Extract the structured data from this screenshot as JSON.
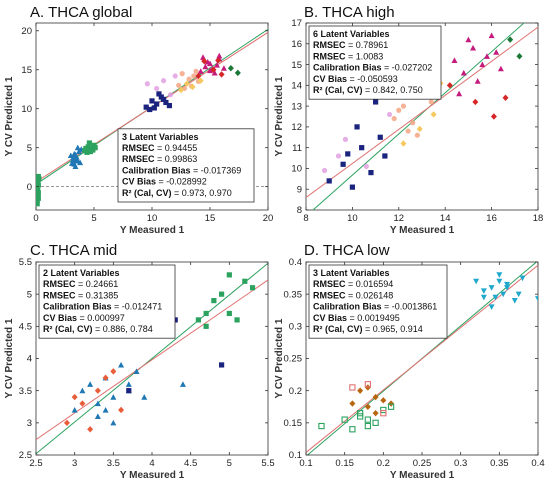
{
  "chart_data": [
    {
      "type": "scatter",
      "title": "A. THCA global",
      "xlabel": "Y Measured 1",
      "ylabel": "Y CV Predicted 1",
      "xlim": [
        0,
        20
      ],
      "ylim": [
        -3,
        21
      ],
      "xticks": [
        0,
        5,
        10,
        15,
        20
      ],
      "yticks": [
        0,
        5,
        10,
        15,
        20
      ],
      "zero_line": true,
      "fit_lines": [
        {
          "color": "#2ca25f",
          "x": [
            0,
            20
          ],
          "y": [
            0.3,
            20.2
          ]
        },
        {
          "color": "#e07070",
          "x": [
            0,
            20
          ],
          "y": [
            0.6,
            19.8
          ]
        }
      ],
      "stats_box": {
        "position": "bottom-right",
        "lines": [
          {
            "label": "3 Latent Variables",
            "value": ""
          },
          {
            "label": "RMSEC",
            "value": " = 0.94455"
          },
          {
            "label": "RMSEC",
            "value": " = 0.99863"
          },
          {
            "label": "Calibration Bias",
            "value": " = -0.017369"
          },
          {
            "label": "CV Bias",
            "value": " = -0.028992"
          },
          {
            "label": "R² (Cal, CV)",
            "value": " = 0.973, 0.970"
          }
        ]
      },
      "series": [
        {
          "color": "#1f77b4",
          "marker": "triangle",
          "x": [
            3.1,
            3.3,
            3.5,
            3.7,
            3.4,
            3.2,
            3.6,
            3.8,
            3.0,
            3.5,
            3.3,
            3.9,
            3.4,
            3.2,
            3.6
          ],
          "y": [
            3.0,
            4.2,
            3.8,
            4.5,
            2.6,
            3.4,
            5.0,
            3.1,
            4.0,
            3.5,
            2.9,
            4.8,
            4.1,
            3.7,
            3.3
          ]
        },
        {
          "color": "#2ca25f",
          "marker": "square",
          "x": [
            4.2,
            4.5,
            4.8,
            4.4,
            5.0,
            4.6,
            4.9,
            4.3,
            5.1,
            4.7
          ],
          "y": [
            4.6,
            5.1,
            4.9,
            4.4,
            5.3,
            5.6,
            4.7,
            4.9,
            5.0,
            4.5
          ]
        },
        {
          "color": "#2ca25f",
          "marker": "square",
          "x": [
            0.1,
            0.15,
            0.2,
            0.1,
            0.2,
            0.15,
            0.25,
            0.1,
            0.2,
            0.15,
            0.1,
            0.2
          ],
          "y": [
            -1.8,
            -1.2,
            -0.8,
            -0.3,
            0.2,
            0.6,
            1.0,
            -2.2,
            -1.5,
            -0.5,
            0.4,
            1.3
          ]
        },
        {
          "color": "#1a237e",
          "marker": "square",
          "x": [
            9.5,
            10.0,
            10.4,
            10.8,
            11.2,
            9.8,
            10.6,
            11.0,
            11.5,
            10.2
          ],
          "y": [
            10.2,
            11.0,
            10.6,
            11.5,
            10.8,
            9.9,
            11.9,
            11.2,
            10.4,
            10.1
          ]
        },
        {
          "color": "#f4a582",
          "marker": "circle",
          "x": [
            12.3,
            12.8,
            13.2,
            13.6,
            14.0,
            12.6,
            13.4,
            13.8
          ],
          "y": [
            13.0,
            12.6,
            13.8,
            14.2,
            13.5,
            14.5,
            12.9,
            14.8
          ]
        },
        {
          "color": "#f6c85f",
          "marker": "diamond",
          "x": [
            12.5,
            13.0,
            13.5,
            14.2
          ],
          "y": [
            12.4,
            13.2,
            12.8,
            13.6
          ]
        },
        {
          "color": "#e0a0e0",
          "marker": "circle",
          "x": [
            9.6,
            10.4,
            11.0,
            12.0,
            11.6
          ],
          "y": [
            13.2,
            12.6,
            13.6,
            14.2,
            11.8
          ]
        },
        {
          "color": "#c51b7d",
          "marker": "triangle",
          "x": [
            14.2,
            14.6,
            15.0,
            15.4,
            15.8,
            14.8,
            15.2,
            15.6,
            16.2,
            14.4,
            15.0,
            15.8
          ],
          "y": [
            14.8,
            15.4,
            15.8,
            14.6,
            16.4,
            16.0,
            15.1,
            15.6,
            15.2,
            16.6,
            14.9,
            16.8
          ]
        },
        {
          "color": "#d62728",
          "marker": "diamond",
          "x": [
            14.0,
            14.5,
            15.3,
            16.0,
            15.7
          ],
          "y": [
            14.2,
            16.1,
            15.0,
            14.4,
            16.2
          ]
        },
        {
          "color": "#1b7837",
          "marker": "diamond",
          "x": [
            16.8,
            17.4
          ],
          "y": [
            15.2,
            14.6
          ]
        }
      ]
    },
    {
      "type": "scatter",
      "title": "B. THCA high",
      "xlabel": "Y Measured 1",
      "ylabel": "Y CV Predicted 1",
      "xlim": [
        8,
        18
      ],
      "ylim": [
        8,
        17
      ],
      "xticks": [
        8,
        10,
        12,
        14,
        16,
        18
      ],
      "yticks": [
        8,
        9,
        10,
        11,
        12,
        13,
        14,
        15,
        16,
        17
      ],
      "fit_lines": [
        {
          "color": "#2ca25f",
          "x": [
            8,
            18
          ],
          "y": [
            7.7,
            17.6
          ]
        },
        {
          "color": "#e07070",
          "x": [
            8,
            18
          ],
          "y": [
            8.6,
            16.8
          ]
        }
      ],
      "stats_box": {
        "position": "top-left",
        "lines": [
          {
            "label": "6 Latent Variables",
            "value": ""
          },
          {
            "label": "RMSEC",
            "value": " = 0.78961"
          },
          {
            "label": "RMSEC",
            "value": " = 1.0083"
          },
          {
            "label": "Calibration Bias",
            "value": " = -0.027202"
          },
          {
            "label": "CV Bias",
            "value": " = -0.050593"
          },
          {
            "label": "R² (Cal, CV)",
            "value": " = 0.842, 0.750"
          }
        ]
      },
      "series": [
        {
          "color": "#1a237e",
          "marker": "square",
          "x": [
            9.0,
            9.6,
            10.0,
            10.4,
            10.8,
            11.0,
            11.4,
            10.2,
            9.8,
            11.2
          ],
          "y": [
            9.4,
            10.2,
            9.1,
            11.0,
            9.8,
            13.2,
            10.6,
            12.0,
            10.7,
            11.5
          ]
        },
        {
          "color": "#f4a582",
          "marker": "circle",
          "x": [
            11.8,
            12.2,
            12.6,
            13.0,
            12.4,
            13.4,
            12.0,
            12.8
          ],
          "y": [
            12.4,
            13.0,
            12.2,
            13.6,
            11.8,
            13.2,
            12.8,
            11.6
          ]
        },
        {
          "color": "#f6c85f",
          "marker": "diamond",
          "x": [
            12.2,
            12.9,
            13.5,
            13.8
          ],
          "y": [
            11.2,
            11.9,
            12.6,
            14.1
          ]
        },
        {
          "color": "#e0a0e0",
          "marker": "circle",
          "x": [
            8.8,
            9.4,
            9.7,
            10.6,
            11.6
          ],
          "y": [
            9.9,
            10.6,
            11.4,
            10.1,
            12.6
          ]
        },
        {
          "color": "#c51b7d",
          "marker": "triangle",
          "x": [
            14.4,
            14.8,
            15.2,
            15.6,
            16.0,
            15.4,
            15.8,
            16.4,
            14.6,
            15.0,
            16.2
          ],
          "y": [
            15.2,
            14.6,
            15.8,
            15.0,
            16.4,
            14.2,
            15.4,
            14.8,
            13.6,
            16.2,
            15.6
          ]
        },
        {
          "color": "#d62728",
          "marker": "diamond",
          "x": [
            14.2,
            15.3,
            16.6,
            16.1
          ],
          "y": [
            14.0,
            13.2,
            13.4,
            12.5
          ]
        },
        {
          "color": "#1b7837",
          "marker": "diamond",
          "x": [
            16.8,
            17.2
          ],
          "y": [
            16.2,
            15.4
          ]
        }
      ]
    },
    {
      "type": "scatter",
      "title": "C. THCA mid",
      "xlabel": "Y Measured 1",
      "ylabel": "Y CV Predicted 1",
      "xlim": [
        2.5,
        5.5
      ],
      "ylim": [
        2.5,
        5.5
      ],
      "xticks": [
        2.5,
        3,
        3.5,
        4,
        4.5,
        5,
        5.5
      ],
      "yticks": [
        2.5,
        3,
        3.5,
        4,
        4.5,
        5,
        5.5
      ],
      "fit_lines": [
        {
          "color": "#2ca25f",
          "x": [
            2.5,
            5.5
          ],
          "y": [
            2.52,
            5.48
          ]
        },
        {
          "color": "#e07070",
          "x": [
            2.5,
            5.5
          ],
          "y": [
            2.74,
            5.22
          ]
        }
      ],
      "stats_box": {
        "position": "top-left",
        "lines": [
          {
            "label": "2 Latent Variables",
            "value": ""
          },
          {
            "label": "RMSEC",
            "value": " = 0.24661"
          },
          {
            "label": "RMSEC",
            "value": " = 0.31385"
          },
          {
            "label": "Calibration Bias",
            "value": " = -0.012471"
          },
          {
            "label": "CV Bias",
            "value": " = 0.000997"
          },
          {
            "label": "R² (Cal, CV)",
            "value": " = 0.886, 0.784"
          }
        ]
      },
      "series": [
        {
          "color": "#1f77b4",
          "marker": "triangle",
          "x": [
            3.0,
            3.2,
            3.3,
            3.4,
            3.5,
            3.6,
            3.7,
            3.8,
            3.3,
            3.5,
            3.7,
            3.9,
            3.1,
            3.4
          ],
          "y": [
            3.2,
            3.6,
            3.1,
            3.7,
            3.4,
            3.9,
            3.5,
            3.8,
            3.3,
            3.0,
            3.6,
            3.4,
            3.5,
            3.2
          ]
        },
        {
          "color": "#e85d3a",
          "marker": "diamond",
          "x": [
            2.9,
            3.1,
            3.3,
            3.5,
            3.6,
            3.2,
            3.4,
            3.0
          ],
          "y": [
            3.0,
            3.3,
            3.5,
            3.8,
            3.2,
            2.9,
            3.7,
            3.4
          ]
        },
        {
          "color": "#1a237e",
          "marker": "square",
          "x": [
            4.3,
            4.9,
            3.7
          ],
          "y": [
            4.6,
            3.9,
            3.5
          ]
        },
        {
          "color": "#2ca25f",
          "marker": "square",
          "x": [
            4.6,
            4.7,
            4.8,
            4.9,
            5.0,
            5.1,
            5.2,
            5.3,
            4.7,
            5.0
          ],
          "y": [
            4.6,
            4.5,
            4.9,
            5.0,
            4.7,
            4.6,
            5.2,
            5.1,
            4.7,
            5.3
          ]
        },
        {
          "color": "#1f77b4",
          "marker": "triangle",
          "x": [
            4.4
          ],
          "y": [
            3.6
          ]
        }
      ]
    },
    {
      "type": "scatter",
      "title": "D. THCA low",
      "xlabel": "Y Measured 1",
      "ylabel": "Y CV Predicted 1",
      "xlim": [
        0.1,
        0.4
      ],
      "ylim": [
        0.1,
        0.4
      ],
      "xticks": [
        0.1,
        0.15,
        0.2,
        0.25,
        0.3,
        0.35,
        0.4
      ],
      "yticks": [
        0.1,
        0.15,
        0.2,
        0.25,
        0.3,
        0.35,
        0.4
      ],
      "fit_lines": [
        {
          "color": "#2ca25f",
          "x": [
            0.1,
            0.4
          ],
          "y": [
            0.098,
            0.402
          ]
        },
        {
          "color": "#e07070",
          "x": [
            0.1,
            0.4
          ],
          "y": [
            0.104,
            0.395
          ]
        }
      ],
      "stats_box": {
        "position": "top-left",
        "lines": [
          {
            "label": "3 Latent Variables",
            "value": ""
          },
          {
            "label": "RMSEC",
            "value": " = 0.016594"
          },
          {
            "label": "RMSEC",
            "value": " = 0.026148"
          },
          {
            "label": "Calibration Bias",
            "value": " = -0.0013861"
          },
          {
            "label": "CV Bias",
            "value": " = 0.0019495"
          },
          {
            "label": "R² (Cal, CV)",
            "value": " = 0.965, 0.914"
          }
        ]
      },
      "series": [
        {
          "color": "#1fa8cc",
          "marker": "triangle-down",
          "x": [
            0.32,
            0.33,
            0.34,
            0.345,
            0.35,
            0.355,
            0.36,
            0.37,
            0.38,
            0.34,
            0.33,
            0.36,
            0.35,
            0.375
          ],
          "y": [
            0.37,
            0.355,
            0.36,
            0.345,
            0.37,
            0.35,
            0.365,
            0.34,
            0.375,
            0.33,
            0.345,
            0.36,
            0.38,
            0.35
          ]
        },
        {
          "color": "#1fa8cc",
          "marker": "triangle-down",
          "x": [
            0.4
          ],
          "y": [
            0.343
          ]
        },
        {
          "color": "#b8650f",
          "marker": "diamond",
          "x": [
            0.16,
            0.17,
            0.18,
            0.19,
            0.2,
            0.21,
            0.18,
            0.19
          ],
          "y": [
            0.18,
            0.2,
            0.175,
            0.19,
            0.185,
            0.18,
            0.205,
            0.165
          ]
        },
        {
          "color": "#2ca25f",
          "marker": "square-open",
          "x": [
            0.12,
            0.15,
            0.16,
            0.17,
            0.18,
            0.2,
            0.19,
            0.21,
            0.17,
            0.18
          ],
          "y": [
            0.145,
            0.155,
            0.14,
            0.16,
            0.155,
            0.17,
            0.15,
            0.175,
            0.165,
            0.145
          ]
        },
        {
          "color": "#e07070",
          "marker": "square-open",
          "x": [
            0.16,
            0.18,
            0.2
          ],
          "y": [
            0.205,
            0.21,
            0.165
          ]
        }
      ]
    }
  ]
}
